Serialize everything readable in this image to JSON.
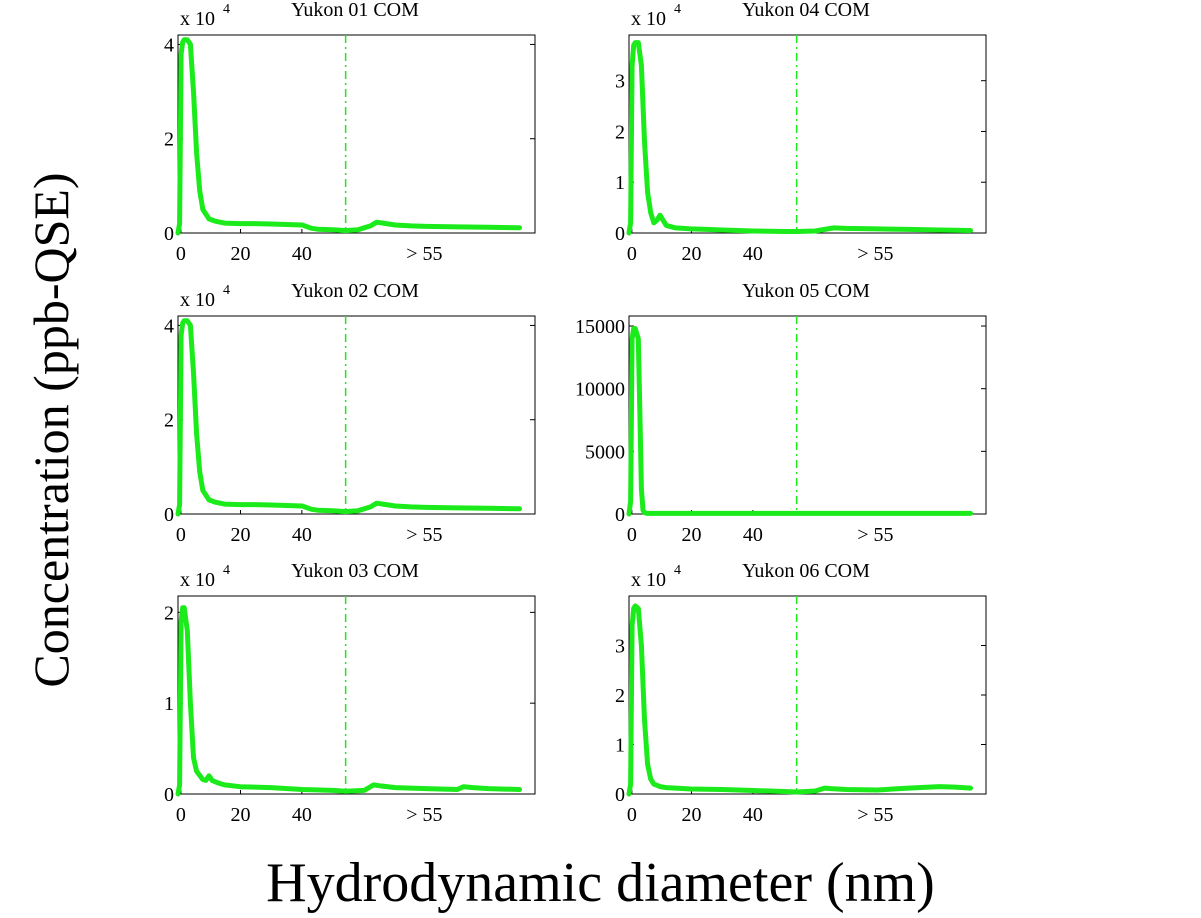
{
  "figure": {
    "ylabel": "Concentration (ppb-QSE)",
    "xlabel": "Hydrodynamic diameter (nm)"
  },
  "chart_data": [
    {
      "type": "line",
      "title": "Yukon 01 COM",
      "exponent_label": "x 10",
      "exponent": "4",
      "xlim": [
        0,
        115
      ],
      "ylim": [
        0,
        42000
      ],
      "xticks": [
        "0",
        "20",
        "40",
        "> 55"
      ],
      "yticks": [
        "0",
        "2",
        "4"
      ],
      "ytick_values": [
        0,
        20000,
        40000
      ],
      "marker_x": 54,
      "series": [
        {
          "color": "#1bea1b",
          "x": [
            0,
            0.5,
            1,
            1.5,
            2,
            3,
            4,
            5,
            6,
            7,
            8,
            10,
            12,
            15,
            20,
            25,
            30,
            35,
            40,
            43,
            45,
            50,
            54,
            58,
            62,
            64,
            66,
            70,
            75,
            80,
            90,
            100,
            110
          ],
          "y": [
            0,
            2000,
            38000,
            40500,
            41000,
            41000,
            40000,
            30000,
            17000,
            9000,
            5000,
            3000,
            2500,
            2100,
            2000,
            2000,
            1900,
            1800,
            1700,
            1000,
            800,
            700,
            500,
            700,
            1500,
            2300,
            2100,
            1700,
            1500,
            1400,
            1300,
            1200,
            1100
          ]
        }
      ]
    },
    {
      "type": "line",
      "title": "Yukon 04 COM",
      "exponent_label": "x 10",
      "exponent": "4",
      "xlim": [
        0,
        115
      ],
      "ylim": [
        0,
        39000
      ],
      "xticks": [
        "0",
        "20",
        "40",
        "> 55"
      ],
      "yticks": [
        "0",
        "1",
        "2",
        "3"
      ],
      "ytick_values": [
        0,
        10000,
        20000,
        30000
      ],
      "marker_x": 54,
      "series": [
        {
          "color": "#1bea1b",
          "x": [
            0,
            0.5,
            1,
            1.5,
            2,
            3,
            4,
            5,
            6,
            7,
            8,
            9,
            10,
            11,
            12,
            15,
            20,
            25,
            30,
            40,
            50,
            54,
            60,
            64,
            66,
            70,
            80,
            90,
            100,
            110
          ],
          "y": [
            0,
            2000,
            33000,
            37000,
            37500,
            37500,
            33000,
            18000,
            8000,
            4000,
            2000,
            2500,
            3500,
            2500,
            1500,
            1000,
            800,
            700,
            600,
            400,
            300,
            300,
            400,
            800,
            1000,
            900,
            800,
            700,
            600,
            500
          ]
        }
      ]
    },
    {
      "type": "line",
      "title": "Yukon 02 COM",
      "exponent_label": "x 10",
      "exponent": "4",
      "xlim": [
        0,
        115
      ],
      "ylim": [
        0,
        42000
      ],
      "xticks": [
        "0",
        "20",
        "40",
        "> 55"
      ],
      "yticks": [
        "0",
        "2",
        "4"
      ],
      "ytick_values": [
        0,
        20000,
        40000
      ],
      "marker_x": 54,
      "series": [
        {
          "color": "#1bea1b",
          "x": [
            0,
            0.5,
            1,
            1.5,
            2,
            3,
            4,
            5,
            6,
            7,
            8,
            10,
            12,
            15,
            20,
            25,
            30,
            35,
            40,
            43,
            45,
            50,
            54,
            58,
            62,
            64,
            66,
            70,
            75,
            80,
            90,
            100,
            110
          ],
          "y": [
            0,
            2000,
            38000,
            40500,
            41000,
            41000,
            40000,
            30000,
            17000,
            9000,
            5000,
            3000,
            2500,
            2100,
            2000,
            2000,
            1900,
            1800,
            1700,
            1000,
            800,
            700,
            500,
            700,
            1500,
            2300,
            2100,
            1700,
            1500,
            1400,
            1300,
            1200,
            1100
          ]
        }
      ]
    },
    {
      "type": "line",
      "title": "Yukon 05 COM",
      "exponent_label": "",
      "exponent": "",
      "xlim": [
        0,
        115
      ],
      "ylim": [
        0,
        15800
      ],
      "xticks": [
        "0",
        "20",
        "40",
        "> 55"
      ],
      "yticks": [
        "0",
        "5000",
        "10000",
        "15000"
      ],
      "ytick_values": [
        0,
        5000,
        10000,
        15000
      ],
      "marker_x": 54,
      "series": [
        {
          "color": "#1bea1b",
          "x": [
            0,
            0.5,
            1,
            1.5,
            2,
            3,
            3.5,
            4,
            4.5,
            5,
            6,
            10,
            20,
            40,
            60,
            80,
            100,
            110
          ],
          "y": [
            0,
            1000,
            14000,
            14800,
            14800,
            14000,
            8000,
            2000,
            300,
            100,
            50,
            50,
            50,
            50,
            50,
            50,
            50,
            50
          ]
        }
      ]
    },
    {
      "type": "line",
      "title": "Yukon 03 COM",
      "exponent_label": "x 10",
      "exponent": "4",
      "xlim": [
        0,
        115
      ],
      "ylim": [
        0,
        21800
      ],
      "xticks": [
        "0",
        "20",
        "40",
        "> 55"
      ],
      "yticks": [
        "0",
        "1",
        "2"
      ],
      "ytick_values": [
        0,
        10000,
        20000
      ],
      "marker_x": 54,
      "series": [
        {
          "color": "#1bea1b",
          "x": [
            0,
            0.5,
            1,
            1.5,
            2,
            3,
            4,
            5,
            6,
            8,
            9,
            10,
            11,
            13,
            15,
            20,
            30,
            40,
            50,
            54,
            60,
            63,
            65,
            70,
            80,
            90,
            92,
            95,
            100,
            110
          ],
          "y": [
            0,
            1000,
            19000,
            20500,
            20500,
            18000,
            10000,
            4000,
            2500,
            1600,
            1500,
            2000,
            1500,
            1200,
            1000,
            800,
            700,
            500,
            400,
            300,
            400,
            1000,
            900,
            700,
            600,
            500,
            800,
            700,
            600,
            500
          ]
        }
      ]
    },
    {
      "type": "line",
      "title": "Yukon 06 COM",
      "exponent_label": "x 10",
      "exponent": "4",
      "xlim": [
        0,
        115
      ],
      "ylim": [
        0,
        40000
      ],
      "xticks": [
        "0",
        "20",
        "40",
        "> 55"
      ],
      "yticks": [
        "0",
        "1",
        "2",
        "3"
      ],
      "ytick_values": [
        0,
        10000,
        20000,
        30000
      ],
      "marker_x": 54,
      "series": [
        {
          "color": "#1bea1b",
          "x": [
            0,
            0.5,
            1,
            1.5,
            2,
            3,
            4,
            5,
            6,
            7,
            8,
            10,
            12,
            15,
            20,
            30,
            40,
            50,
            54,
            60,
            63,
            65,
            70,
            80,
            90,
            100,
            105,
            110
          ],
          "y": [
            0,
            2000,
            34000,
            37500,
            38000,
            37500,
            30000,
            15000,
            6000,
            3000,
            2000,
            1500,
            1300,
            1200,
            1000,
            900,
            700,
            500,
            400,
            600,
            1200,
            1100,
            900,
            800,
            1200,
            1500,
            1400,
            1200
          ]
        }
      ]
    }
  ]
}
